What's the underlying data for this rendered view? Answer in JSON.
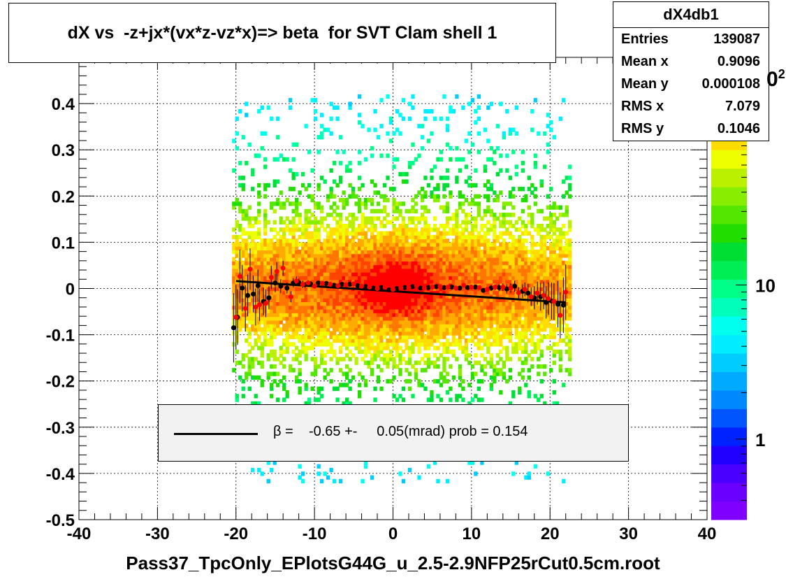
{
  "title": "dX vs  -z+jx*(vx*z-vz*x)=> beta  for SVT Clam shell 1",
  "xlabel": "Pass37_TpcOnly_EPlotsG44G_u_2.5-2.9NFP25rCut0.5cm.root",
  "stats": {
    "name": "dX4db1",
    "rows": [
      {
        "label": "Entries",
        "value": "139087"
      },
      {
        "label": "Mean x",
        "value": "0.9096"
      },
      {
        "label": "Mean y",
        "value": "0.000108"
      },
      {
        "label": "RMS x",
        "value": "7.079"
      },
      {
        "label": "RMS y",
        "value": "0.1046"
      }
    ]
  },
  "legend": {
    "text": "β =    -0.65 +-     0.05(mrad) prob = 0.154"
  },
  "colorbar": {
    "labels": [
      "1",
      "10"
    ],
    "partial_label": "0",
    "partial_exponent": "2"
  },
  "chart_data": {
    "type": "heatmap",
    "xlim": [
      -40,
      40
    ],
    "ylim": [
      -0.5,
      0.5
    ],
    "xticks": [
      -40,
      -30,
      -20,
      -10,
      0,
      10,
      20,
      30,
      40
    ],
    "yticks": [
      -0.5,
      -0.4,
      -0.3,
      -0.2,
      -0.1,
      0,
      0.1,
      0.2,
      0.3,
      0.4
    ],
    "xtick_labels": [
      "-40",
      "-30",
      "-20",
      "-10",
      "0",
      "10",
      "20",
      "30",
      "40"
    ],
    "ytick_labels": [
      "-0.5",
      "-0.4",
      "-0.3",
      "-0.2",
      "-0.1",
      "0",
      "0.1",
      "0.2",
      "0.3",
      "0.4"
    ],
    "grid": true,
    "z_scale": "log",
    "data_x_range": [
      -20.5,
      22.5
    ],
    "colors": {
      "palette": [
        "#7f00ff",
        "#6a00ff",
        "#4a00ff",
        "#2200ff",
        "#0022ff",
        "#0055ff",
        "#0088ff",
        "#00aaff",
        "#00ccff",
        "#00eeff",
        "#00ffee",
        "#00ffbb",
        "#00ff88",
        "#00ee55",
        "#00dd33",
        "#22dd00",
        "#55e600",
        "#88ee00",
        "#bbf000",
        "#eeff00",
        "#ffdd00",
        "#ffaa00",
        "#ff7700",
        "#ff4400",
        "#ff0000"
      ],
      "profile_black": "#000000",
      "profile_red": "#ff0000"
    },
    "fit_line": {
      "x": [
        -20,
        22
      ],
      "y": [
        0.016,
        -0.03
      ]
    },
    "series": [
      {
        "marker": "black",
        "x": [
          -20.3,
          -19.8,
          -19.2,
          -18.5,
          -17.8,
          -17.2,
          -16.5,
          -15.8,
          -15.0,
          -14.3,
          -13.5,
          -12.7,
          -12.0,
          -11.2,
          -10.5,
          -9.5,
          -8.5,
          -7.5,
          -6.5,
          -5.5,
          -4.5,
          -3.5,
          -2.5,
          -1.5,
          -0.5,
          0.5,
          1.5,
          2.5,
          3.5,
          4.5,
          5.5,
          6.5,
          7.5,
          8.5,
          9.5,
          10.5,
          11.5,
          12.5,
          13.5,
          14.5,
          15.5,
          16.5,
          17.2,
          18.0,
          18.8,
          19.5,
          20.2,
          21.0,
          21.7
        ],
        "y": [
          -0.085,
          -0.062,
          0.001,
          -0.015,
          -0.012,
          0.006,
          -0.028,
          -0.02,
          0.012,
          0.005,
          0.001,
          0.012,
          0.013,
          0.008,
          0.01,
          0.012,
          0.011,
          0.007,
          0.009,
          0.009,
          0.006,
          0.004,
          0.001,
          0.002,
          -0.003,
          0.0,
          0.002,
          0.004,
          0.001,
          0.002,
          0.004,
          0.002,
          0.003,
          0.001,
          0.002,
          0.003,
          -0.004,
          0.001,
          0.002,
          -0.001,
          0.005,
          -0.006,
          -0.01,
          -0.02,
          -0.018,
          -0.03,
          -0.027,
          -0.034,
          -0.036
        ],
        "err": [
          0.075,
          0.06,
          0.05,
          0.045,
          0.04,
          0.035,
          0.03,
          0.025,
          0.02,
          0.015,
          0.012,
          0.01,
          0.008,
          0.006,
          0.005,
          0.004,
          0.003,
          0.003,
          0.003,
          0.003,
          0.002,
          0.002,
          0.002,
          0.002,
          0.002,
          0.002,
          0.002,
          0.002,
          0.002,
          0.003,
          0.003,
          0.003,
          0.003,
          0.003,
          0.004,
          0.004,
          0.005,
          0.006,
          0.008,
          0.01,
          0.012,
          0.015,
          0.02,
          0.025,
          0.03,
          0.035,
          0.04,
          0.05,
          0.06
        ]
      },
      {
        "marker": "red",
        "x": [
          -20.0,
          -19.5,
          -18.8,
          -18.2,
          -17.5,
          -17.0,
          -16.2,
          -15.5,
          -14.8,
          -14.0,
          -13.0,
          -12.3,
          -11.5,
          -10.8,
          -10.0,
          -9.0,
          -8.0,
          -7.0,
          -6.0,
          -5.0,
          -4.0,
          -3.0,
          -2.0,
          -1.0,
          0.0,
          1.0,
          2.0,
          3.0,
          4.0,
          5.0,
          6.0,
          7.0,
          8.0,
          9.0,
          10.0,
          11.0,
          12.0,
          13.0,
          14.0,
          15.0,
          16.0,
          16.8,
          17.6,
          18.4,
          19.2,
          19.8,
          20.5,
          21.3,
          22.0
        ],
        "y": [
          -0.062,
          0.026,
          -0.043,
          0.042,
          -0.04,
          -0.035,
          -0.032,
          0.024,
          0.037,
          0.044,
          -0.018,
          0.016,
          0.009,
          0.012,
          0.005,
          0.011,
          0.009,
          0.006,
          0.008,
          0.01,
          0.005,
          0.003,
          0.0,
          0.003,
          -0.002,
          0.001,
          0.002,
          0.006,
          0.001,
          0.003,
          0.004,
          0.003,
          0.001,
          0.007,
          0.003,
          0.002,
          -0.002,
          0.003,
          0.003,
          0.001,
          -0.009,
          -0.002,
          -0.018,
          -0.01,
          -0.015,
          -0.022,
          -0.028,
          -0.058,
          -0.008
        ],
        "err": [
          0.07,
          0.058,
          0.05,
          0.045,
          0.04,
          0.035,
          0.03,
          0.025,
          0.02,
          0.016,
          0.012,
          0.01,
          0.008,
          0.006,
          0.005,
          0.004,
          0.003,
          0.003,
          0.003,
          0.003,
          0.002,
          0.002,
          0.002,
          0.002,
          0.002,
          0.002,
          0.002,
          0.002,
          0.002,
          0.003,
          0.003,
          0.003,
          0.003,
          0.003,
          0.004,
          0.004,
          0.005,
          0.006,
          0.008,
          0.01,
          0.012,
          0.015,
          0.02,
          0.025,
          0.03,
          0.035,
          0.04,
          0.05,
          0.06
        ]
      }
    ]
  }
}
